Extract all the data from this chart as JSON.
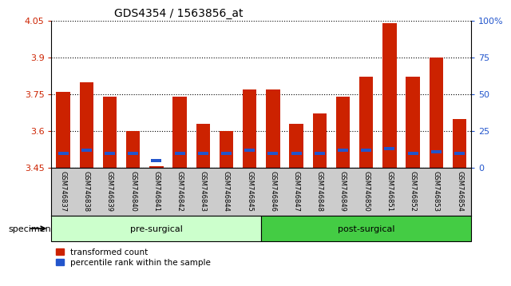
{
  "title": "GDS4354 / 1563856_at",
  "samples": [
    "GSM746837",
    "GSM746838",
    "GSM746839",
    "GSM746840",
    "GSM746841",
    "GSM746842",
    "GSM746843",
    "GSM746844",
    "GSM746845",
    "GSM746846",
    "GSM746847",
    "GSM746848",
    "GSM746849",
    "GSM746850",
    "GSM746851",
    "GSM746852",
    "GSM746853",
    "GSM746854"
  ],
  "transformed_count": [
    3.76,
    3.8,
    3.74,
    3.6,
    3.455,
    3.74,
    3.63,
    3.6,
    3.77,
    3.77,
    3.63,
    3.67,
    3.74,
    3.82,
    4.04,
    3.82,
    3.9,
    3.65
  ],
  "percentile_rank": [
    10,
    12,
    10,
    10,
    5,
    10,
    10,
    10,
    12,
    10,
    10,
    10,
    12,
    12,
    13,
    10,
    11,
    10
  ],
  "ymin": 3.45,
  "ymax": 4.05,
  "yticks": [
    3.45,
    3.6,
    3.75,
    3.9,
    4.05
  ],
  "ytick_labels": [
    "3.45",
    "3.6",
    "3.75",
    "3.9",
    "4.05"
  ],
  "right_yticks": [
    0,
    25,
    50,
    75,
    100
  ],
  "right_ytick_labels": [
    "0",
    "25",
    "50",
    "75",
    "100%"
  ],
  "pre_surgical_count": 9,
  "post_surgical_count": 9,
  "bar_color": "#cc2200",
  "blue_color": "#2255cc",
  "pre_bg": "#ccffcc",
  "post_bg": "#44cc44",
  "tick_area_bg": "#cccccc",
  "bar_width": 0.6,
  "fig_bg": "#ffffff"
}
